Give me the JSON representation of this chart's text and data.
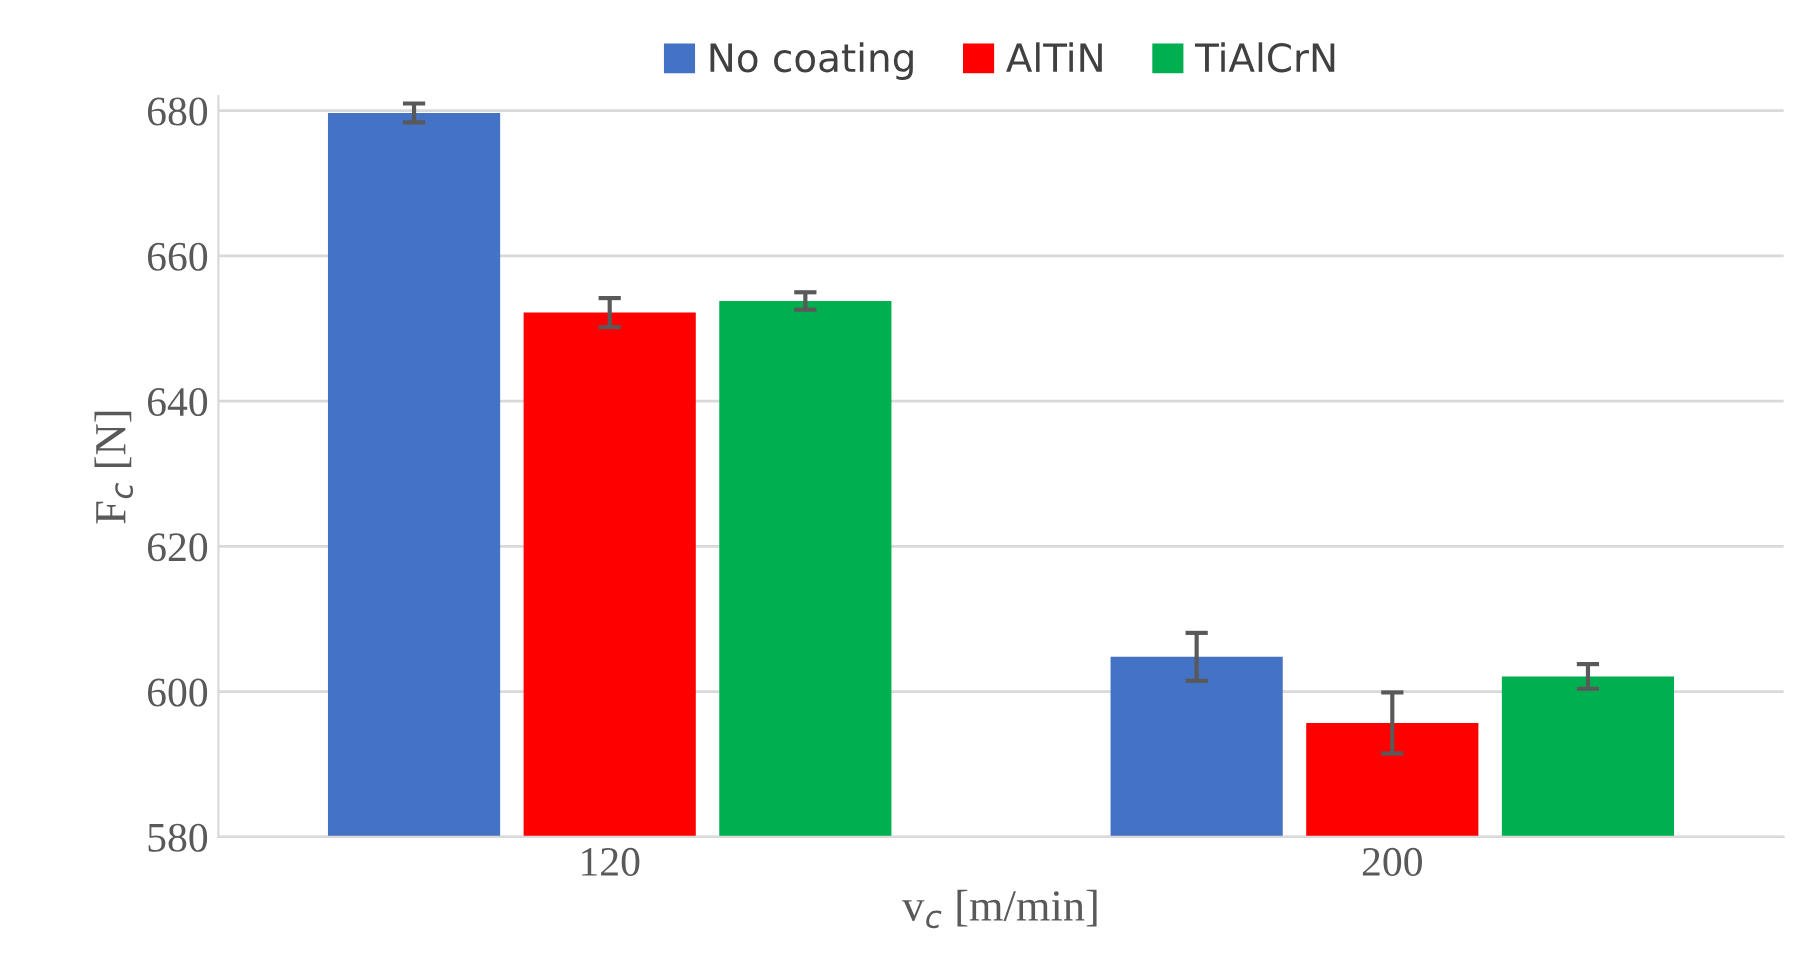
{
  "chart_data": {
    "type": "bar",
    "xlabel": "v$_{c}$ [m/min]",
    "ylabel": "F$_{c}$ [N]",
    "categories": [
      "120",
      "200"
    ],
    "series": [
      {
        "name": "No coating",
        "color": "#4472c4",
        "values": [
          679.7,
          604.8
        ],
        "errors": [
          1.3,
          3.3
        ]
      },
      {
        "name": "AlTiN",
        "color": "#ff0000",
        "values": [
          652.2,
          595.7
        ],
        "errors": [
          2.0,
          4.2
        ]
      },
      {
        "name": "TiAlCrN",
        "color": "#00b050",
        "values": [
          653.8,
          602.1
        ],
        "errors": [
          1.2,
          1.7
        ]
      }
    ],
    "ylim": [
      580,
      682
    ],
    "yticks": [
      580,
      600,
      620,
      640,
      660,
      680
    ],
    "grid": "y",
    "legend": "top"
  }
}
